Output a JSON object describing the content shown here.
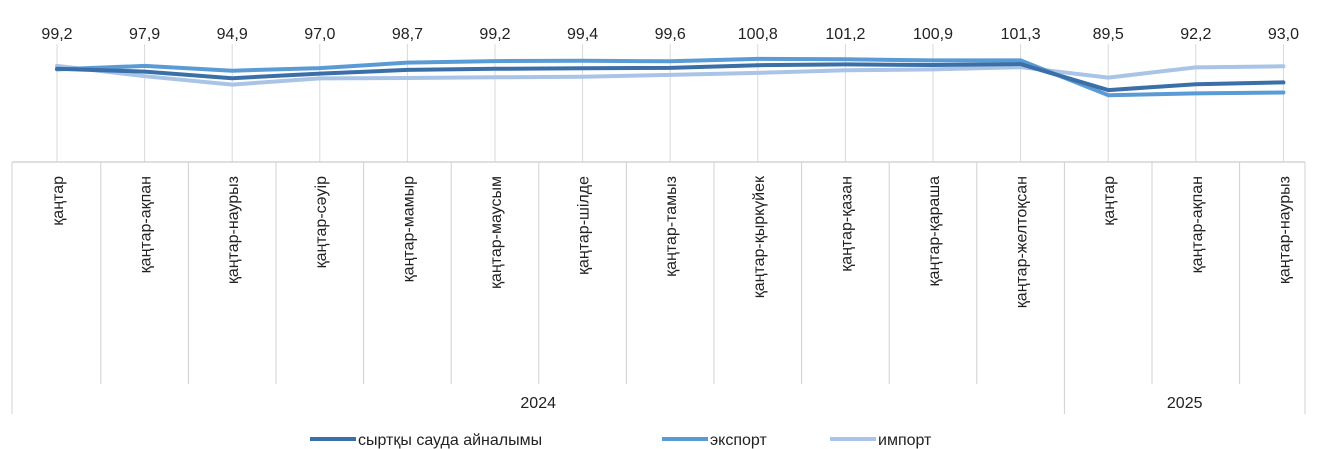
{
  "chart_data": {
    "type": "line",
    "categories": [
      "қаңтар",
      "қаңтар-ақпан",
      "қаңтар-наурыз",
      "қаңтар-сәуір",
      "қаңтар-мамыр",
      "қаңтар-маусым",
      "қаңтар-шілде",
      "қаңтар-тамыз",
      "қаңтар-қыркүйек",
      "қаңтар-қазан",
      "қаңтар-қараша",
      "қаңтар-желтоқсан",
      "қаңтар",
      "қаңтар-ақпан",
      "қаңтар-наурыз"
    ],
    "groups": [
      {
        "label": "2024",
        "count": 12
      },
      {
        "label": "2025",
        "count": 3
      }
    ],
    "series": [
      {
        "name": "сыртқы сауда айналымы",
        "color": "#3a6fa8",
        "values": [
          99.2,
          97.9,
          94.9,
          97.0,
          98.7,
          99.2,
          99.4,
          99.6,
          100.8,
          101.2,
          100.9,
          101.3,
          89.5,
          92.2,
          93.0
        ],
        "labels": [
          "99,2",
          "97,9",
          "94,9",
          "97,0",
          "98,7",
          "99,2",
          "99,4",
          "99,6",
          "100,8",
          "101,2",
          "100,9",
          "101,3",
          "89,5",
          "92,2",
          "93,0"
        ]
      },
      {
        "name": "экспорт",
        "color": "#5b9bd5",
        "values": [
          98.9,
          100.5,
          98.3,
          99.5,
          102.0,
          102.7,
          102.8,
          102.6,
          103.7,
          103.5,
          103.0,
          103.0,
          87.2,
          88.0,
          88.4
        ]
      },
      {
        "name": "импорт",
        "color": "#a9c4e6",
        "values": [
          100.5,
          95.8,
          92.0,
          94.8,
          95.0,
          95.3,
          95.6,
          96.4,
          97.3,
          98.5,
          98.9,
          99.9,
          95.2,
          99.8,
          100.3
        ]
      }
    ],
    "legend_position": "bottom",
    "grid": false
  }
}
